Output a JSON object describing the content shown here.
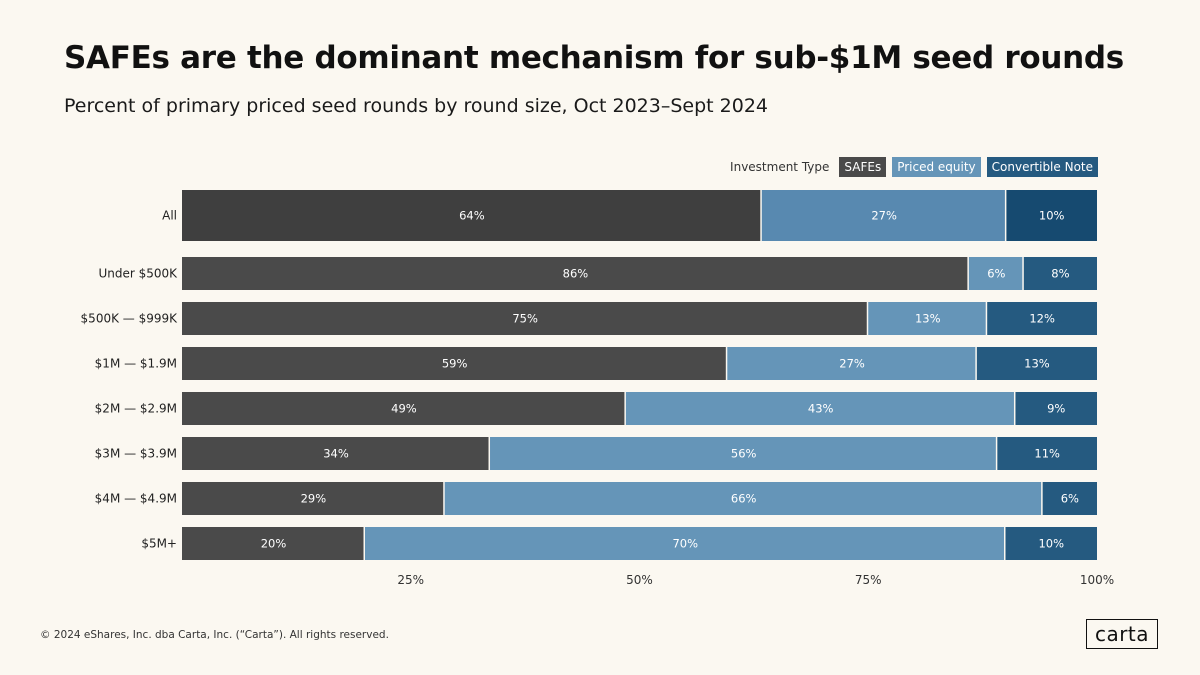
{
  "title": "SAFEs are the dominant mechanism for sub-$1M seed rounds",
  "subtitle": "Percent of primary priced seed rounds  by round size,  Oct 2023–Sept 2024",
  "legend": {
    "title": "Investment Type",
    "items": [
      {
        "label": "SAFEs",
        "color": "#4a4a4a"
      },
      {
        "label": "Priced equity",
        "color": "#6595b8"
      },
      {
        "label": "Convertible Note",
        "color": "#255a80"
      }
    ]
  },
  "footer": "© 2024 eShares, Inc. dba Carta, Inc. (“Carta”). All rights reserved.",
  "logo": "carta",
  "chart_data": {
    "type": "bar",
    "orientation": "horizontal",
    "stacked": true,
    "categories": [
      "All",
      "Under $500K",
      "$500K — $999K",
      "$1M — $1.9M",
      "$2M — $2.9M",
      "$3M — $3.9M",
      "$4M — $4.9M",
      "$5M+"
    ],
    "series": [
      {
        "name": "SAFEs",
        "color": "#4a4a4a",
        "values": [
          64,
          86,
          75,
          59,
          49,
          34,
          29,
          20
        ]
      },
      {
        "name": "Priced equity",
        "color": "#6595b8",
        "values": [
          27,
          6,
          13,
          27,
          43,
          56,
          66,
          70
        ]
      },
      {
        "name": "Convertible Note",
        "color": "#255a80",
        "values": [
          10,
          8,
          12,
          13,
          9,
          11,
          6,
          10
        ]
      }
    ],
    "highlight_category": {
      "name": "All",
      "colors": [
        "#3f3f3f",
        "#5889b0",
        "#164a70"
      ]
    },
    "xlim": [
      0,
      100
    ],
    "x_ticks": [
      25,
      50,
      75,
      100
    ],
    "x_tick_labels": [
      "25%",
      "50%",
      "75%",
      "100%"
    ],
    "value_suffix": "%",
    "grid": false,
    "legend_position": "top-right"
  }
}
